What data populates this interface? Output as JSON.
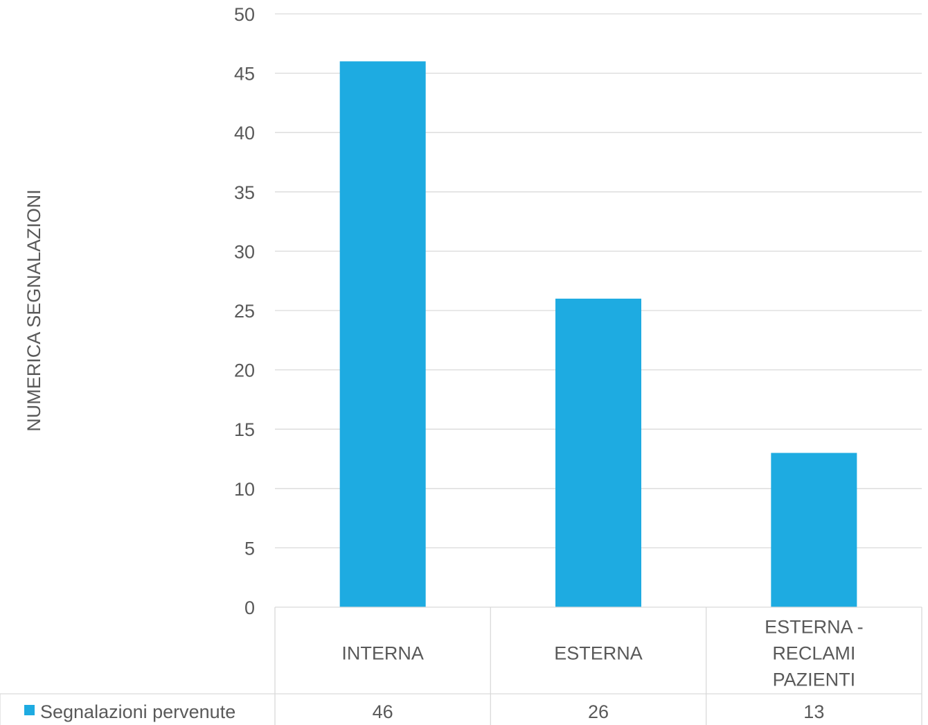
{
  "chart_data": {
    "type": "bar",
    "ylabel": "NUMERICA SEGNALAZIONI",
    "ylim": [
      0,
      50
    ],
    "ytick_step": 5,
    "y_ticks": [
      "0",
      "5",
      "10",
      "15",
      "20",
      "25",
      "30",
      "35",
      "40",
      "45",
      "50"
    ],
    "categories": [
      {
        "lines": [
          "INTERNA"
        ]
      },
      {
        "lines": [
          "ESTERNA"
        ]
      },
      {
        "lines": [
          "ESTERNA -",
          "RECLAMI",
          "PAZIENTI"
        ]
      }
    ],
    "series": [
      {
        "name": "Segnalazioni pervenute",
        "color": "#1eabe1",
        "values": [
          46,
          26,
          13
        ],
        "value_labels": [
          "46",
          "26",
          "13"
        ]
      }
    ],
    "grid": true,
    "data_table": true,
    "legend": "data-table-left"
  }
}
